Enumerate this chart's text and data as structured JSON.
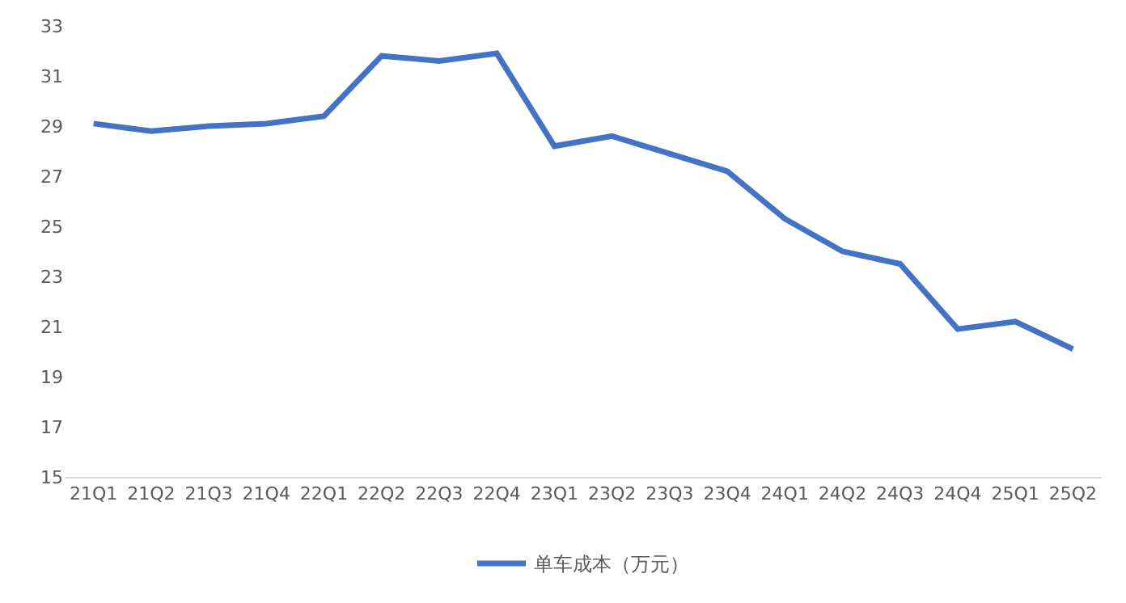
{
  "chart_data": {
    "type": "line",
    "categories": [
      "21Q1",
      "21Q2",
      "21Q3",
      "21Q4",
      "22Q1",
      "22Q2",
      "22Q3",
      "22Q4",
      "23Q1",
      "23Q2",
      "23Q3",
      "23Q4",
      "24Q1",
      "24Q2",
      "24Q3",
      "24Q4",
      "25Q1",
      "25Q2"
    ],
    "series": [
      {
        "name": "单车成本（万元）",
        "color": "#4472c4",
        "values": [
          29.1,
          28.8,
          29.0,
          29.1,
          29.4,
          31.8,
          31.6,
          31.9,
          28.2,
          28.6,
          27.9,
          27.2,
          25.3,
          24.0,
          23.5,
          20.9,
          21.2,
          20.1
        ]
      }
    ],
    "ylim": [
      15,
      33
    ],
    "yticks": [
      15,
      17,
      19,
      21,
      23,
      25,
      27,
      29,
      31,
      33
    ],
    "grid": false,
    "legend": "bottom",
    "marker": "none",
    "line_style": "solid"
  }
}
